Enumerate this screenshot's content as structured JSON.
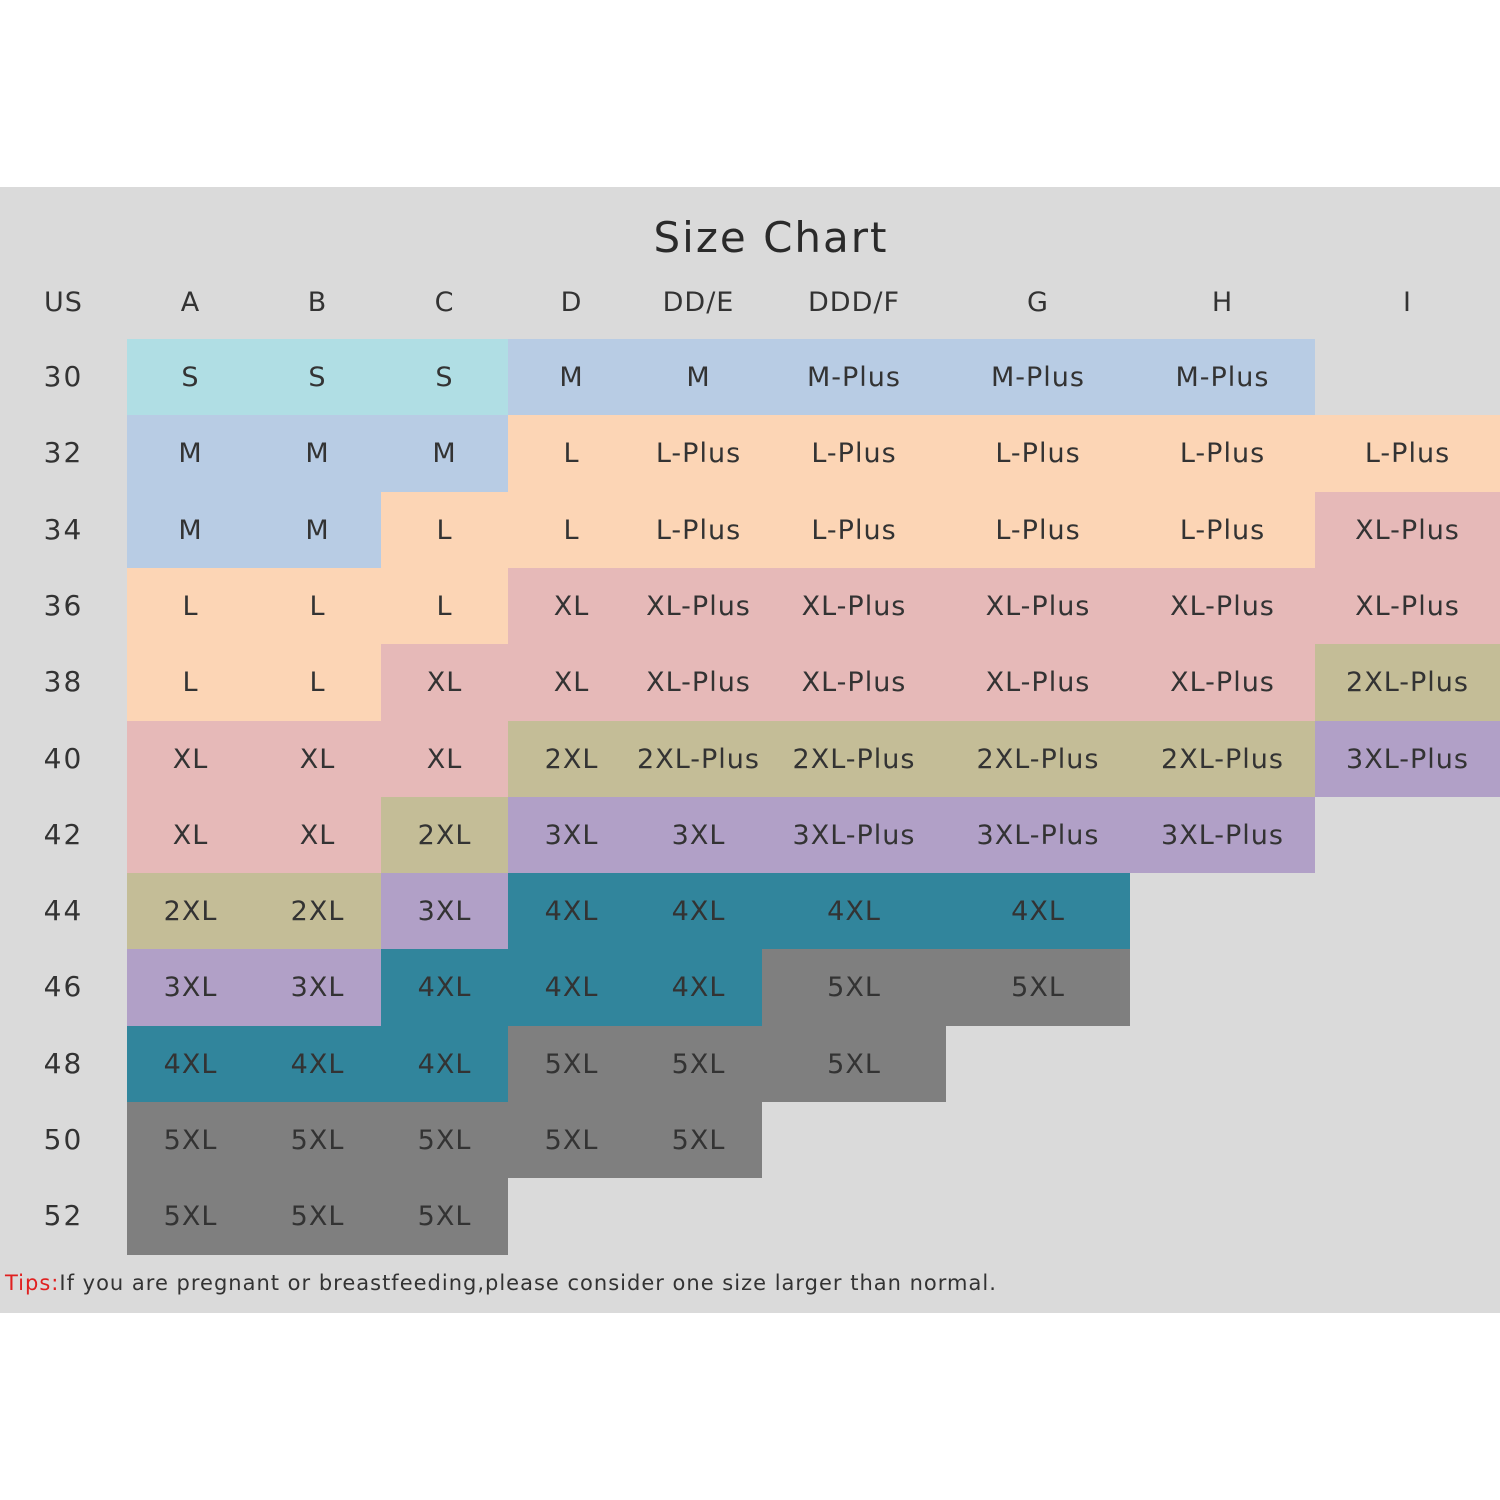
{
  "title": "Size Chart",
  "corner_label": "US",
  "cup_sizes": [
    "A",
    "B",
    "C",
    "D",
    "DD/E",
    "DDD/F",
    "G",
    "H",
    "I"
  ],
  "band_sizes": [
    "30",
    "32",
    "34",
    "36",
    "38",
    "40",
    "42",
    "44",
    "46",
    "48",
    "50",
    "52"
  ],
  "size_colors": {
    "S": "#b0dee4",
    "M": "#b8cce4",
    "L": "#fcd5b5",
    "XL": "#e6b9b8",
    "2XL": "#c4bd97",
    "3XL": "#b1a0c7",
    "4XL": "#31859c",
    "5XL": "#7f7f7f"
  },
  "rows": [
    [
      {
        "text": "S",
        "group": "S"
      },
      {
        "text": "S",
        "group": "S"
      },
      {
        "text": "S",
        "group": "S"
      },
      {
        "text": "M",
        "group": "M"
      },
      {
        "text": "M",
        "group": "M"
      },
      {
        "text": "M-Plus",
        "group": "M"
      },
      {
        "text": "M-Plus",
        "group": "M"
      },
      {
        "text": "M-Plus",
        "group": "M"
      },
      null
    ],
    [
      {
        "text": "M",
        "group": "M"
      },
      {
        "text": "M",
        "group": "M"
      },
      {
        "text": "M",
        "group": "M"
      },
      {
        "text": "L",
        "group": "L"
      },
      {
        "text": "L-Plus",
        "group": "L"
      },
      {
        "text": "L-Plus",
        "group": "L"
      },
      {
        "text": "L-Plus",
        "group": "L"
      },
      {
        "text": "L-Plus",
        "group": "L"
      },
      {
        "text": "L-Plus",
        "group": "L"
      }
    ],
    [
      {
        "text": "M",
        "group": "M"
      },
      {
        "text": "M",
        "group": "M"
      },
      {
        "text": "L",
        "group": "L"
      },
      {
        "text": "L",
        "group": "L"
      },
      {
        "text": "L-Plus",
        "group": "L"
      },
      {
        "text": "L-Plus",
        "group": "L"
      },
      {
        "text": "L-Plus",
        "group": "L"
      },
      {
        "text": "L-Plus",
        "group": "L"
      },
      {
        "text": "XL-Plus",
        "group": "XL"
      }
    ],
    [
      {
        "text": "L",
        "group": "L"
      },
      {
        "text": "L",
        "group": "L"
      },
      {
        "text": "L",
        "group": "L"
      },
      {
        "text": "XL",
        "group": "XL"
      },
      {
        "text": "XL-Plus",
        "group": "XL"
      },
      {
        "text": "XL-Plus",
        "group": "XL"
      },
      {
        "text": "XL-Plus",
        "group": "XL"
      },
      {
        "text": "XL-Plus",
        "group": "XL"
      },
      {
        "text": "XL-Plus",
        "group": "XL"
      }
    ],
    [
      {
        "text": "L",
        "group": "L"
      },
      {
        "text": "L",
        "group": "L"
      },
      {
        "text": "XL",
        "group": "XL"
      },
      {
        "text": "XL",
        "group": "XL"
      },
      {
        "text": "XL-Plus",
        "group": "XL"
      },
      {
        "text": "XL-Plus",
        "group": "XL"
      },
      {
        "text": "XL-Plus",
        "group": "XL"
      },
      {
        "text": "XL-Plus",
        "group": "XL"
      },
      {
        "text": "2XL-Plus",
        "group": "2XL"
      }
    ],
    [
      {
        "text": "XL",
        "group": "XL"
      },
      {
        "text": "XL",
        "group": "XL"
      },
      {
        "text": "XL",
        "group": "XL"
      },
      {
        "text": "2XL",
        "group": "2XL"
      },
      {
        "text": "2XL-Plus",
        "group": "2XL"
      },
      {
        "text": "2XL-Plus",
        "group": "2XL"
      },
      {
        "text": "2XL-Plus",
        "group": "2XL"
      },
      {
        "text": "2XL-Plus",
        "group": "2XL"
      },
      {
        "text": "3XL-Plus",
        "group": "3XL"
      }
    ],
    [
      {
        "text": "XL",
        "group": "XL"
      },
      {
        "text": "XL",
        "group": "XL"
      },
      {
        "text": "2XL",
        "group": "2XL"
      },
      {
        "text": "3XL",
        "group": "3XL"
      },
      {
        "text": "3XL",
        "group": "3XL"
      },
      {
        "text": "3XL-Plus",
        "group": "3XL"
      },
      {
        "text": "3XL-Plus",
        "group": "3XL"
      },
      {
        "text": "3XL-Plus",
        "group": "3XL"
      },
      null
    ],
    [
      {
        "text": "2XL",
        "group": "2XL"
      },
      {
        "text": "2XL",
        "group": "2XL"
      },
      {
        "text": "3XL",
        "group": "3XL"
      },
      {
        "text": "4XL",
        "group": "4XL"
      },
      {
        "text": "4XL",
        "group": "4XL"
      },
      {
        "text": "4XL",
        "group": "4XL"
      },
      {
        "text": "4XL",
        "group": "4XL"
      },
      null,
      null
    ],
    [
      {
        "text": "3XL",
        "group": "3XL"
      },
      {
        "text": "3XL",
        "group": "3XL"
      },
      {
        "text": "4XL",
        "group": "4XL"
      },
      {
        "text": "4XL",
        "group": "4XL"
      },
      {
        "text": "4XL",
        "group": "4XL"
      },
      {
        "text": "5XL",
        "group": "5XL"
      },
      {
        "text": "5XL",
        "group": "5XL"
      },
      null,
      null
    ],
    [
      {
        "text": "4XL",
        "group": "4XL"
      },
      {
        "text": "4XL",
        "group": "4XL"
      },
      {
        "text": "4XL",
        "group": "4XL"
      },
      {
        "text": "5XL",
        "group": "5XL"
      },
      {
        "text": "5XL",
        "group": "5XL"
      },
      {
        "text": "5XL",
        "group": "5XL"
      },
      null,
      null,
      null
    ],
    [
      {
        "text": "5XL",
        "group": "5XL"
      },
      {
        "text": "5XL",
        "group": "5XL"
      },
      {
        "text": "5XL",
        "group": "5XL"
      },
      {
        "text": "5XL",
        "group": "5XL"
      },
      {
        "text": "5XL",
        "group": "5XL"
      },
      null,
      null,
      null,
      null
    ],
    [
      {
        "text": "5XL",
        "group": "5XL"
      },
      {
        "text": "5XL",
        "group": "5XL"
      },
      {
        "text": "5XL",
        "group": "5XL"
      },
      null,
      null,
      null,
      null,
      null,
      null
    ]
  ],
  "tips": {
    "label": "Tips:",
    "text": "If you are pregnant or breastfeeding,please consider one size larger than normal."
  }
}
